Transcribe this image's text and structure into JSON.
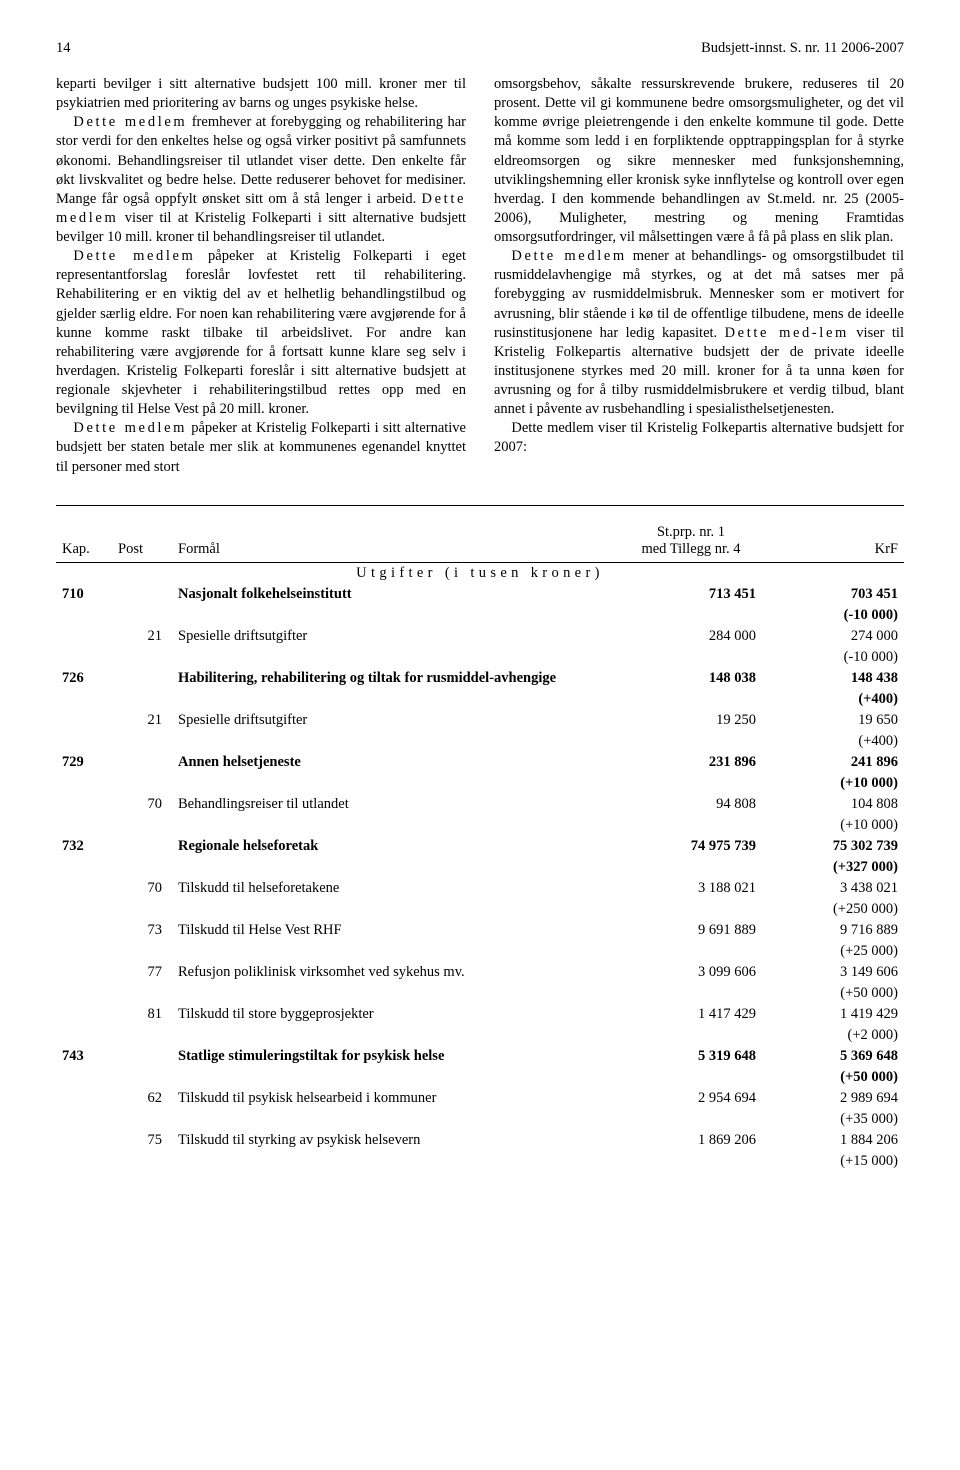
{
  "header": {
    "page_number": "14",
    "doc_ref": "Budsjett-innst. S. nr. 11 2006-2007"
  },
  "body": {
    "col1": {
      "p1": "keparti bevilger i sitt alternative budsjett 100 mill. kroner mer til psykiatrien med prioritering av barns og unges psykiske helse.",
      "p2a": "Dette medlem",
      "p2b": " fremhever at forebygging og rehabilitering har stor verdi for den enkeltes helse og også virker positivt på samfunnets økonomi. Behandlingsreiser til utlandet viser dette. Den enkelte får økt livskvalitet og bedre helse. Dette reduserer behovet for medisiner. Mange får også oppfylt ønsket sitt om å stå lenger i arbeid. ",
      "p2c": "Dette medlem",
      "p2d": " viser til at Kristelig Folkeparti i sitt alternative budsjett bevilger 10 mill. kroner til behandlingsreiser til utlandet.",
      "p3a": "Dette medlem",
      "p3b": " påpeker at Kristelig Folkeparti i eget representantforslag foreslår lovfestet rett til rehabilitering. Rehabilitering er en viktig del av et helhetlig behandlingstilbud og gjelder særlig eldre. For noen kan rehabilitering være avgjørende for å kunne komme raskt tilbake til arbeidslivet. For andre kan rehabilitering være avgjørende for å fortsatt kunne klare seg selv i hverdagen. Kristelig Folkeparti foreslår i sitt alternative budsjett at regionale skjevheter i rehabiliteringstilbud rettes opp med en bevilgning til Helse Vest på 20 mill. kroner.",
      "p4a": "Dette medlem",
      "p4b": " påpeker at Kristelig Folkeparti i sitt alternative budsjett ber staten betale mer slik at kommunenes egenandel knyttet til personer med stort"
    },
    "col2": {
      "p1": "omsorgsbehov, såkalte ressurskrevende brukere, reduseres til 20 prosent. Dette vil gi kommunene bedre omsorgsmuligheter, og det vil komme øvrige pleietrengende i den enkelte kommune til gode. Dette må komme som ledd i en forpliktende opptrappingsplan for å styrke eldreomsorgen og sikre mennesker med funksjonshemning, utviklingshemning eller kronisk syke innflytelse og kontroll over egen hverdag. I den kommende behandlingen av St.meld. nr. 25 (2005-2006), Muligheter, mestring og mening Framtidas omsorgsutfordringer, vil målsettingen være å få på plass en slik plan.",
      "p2a": "Dette medlem",
      "p2b": " mener at behandlings- og omsorgstilbudet til rusmiddelavhengige må styrkes, og at det må satses mer på forebygging av rusmiddelmisbruk. Mennesker som er motivert for avrusning, blir stående i kø til de offentlige tilbudene, mens de ideelle rusinstitusjonene har ledig kapasitet. ",
      "p2c": "Dette med-lem",
      "p2d": " viser til Kristelig Folkepartis alternative budsjett der de private ideelle institusjonene styrkes med 20 mill. kroner for å ta unna køen for avrusning og for å tilby rusmiddelmisbrukere et verdig tilbud, blant annet i påvente av rusbehandling i spesialisthelsetjenesten.",
      "p3": "Dette medlem viser til Kristelig Folkepartis alternative budsjett for 2007:"
    }
  },
  "table": {
    "headers": {
      "kap": "Kap.",
      "post": "Post",
      "formal": "Formål",
      "stprp_l1": "St.prp. nr. 1",
      "stprp_l2": "med Tillegg nr. 4",
      "krf": "KrF"
    },
    "section_title": "Utgifter (i tusen kroner)",
    "rows": [
      {
        "kap": "710",
        "post": "",
        "formal": "Nasjonalt folkehelseinstitutt",
        "v1": "713 451",
        "v2": "703 451",
        "diff": "(-10 000)",
        "bold": true
      },
      {
        "kap": "",
        "post": "21",
        "formal": "Spesielle driftsutgifter",
        "v1": "284 000",
        "v2": "274 000",
        "diff": "(-10 000)",
        "bold": false
      },
      {
        "kap": "726",
        "post": "",
        "formal": "Habilitering, rehabilitering og tiltak for rusmiddel-avhengige",
        "v1": "148 038",
        "v2": "148 438",
        "diff": "(+400)",
        "bold": true
      },
      {
        "kap": "",
        "post": "21",
        "formal": "Spesielle driftsutgifter",
        "v1": "19 250",
        "v2": "19 650",
        "diff": "(+400)",
        "bold": false
      },
      {
        "kap": "729",
        "post": "",
        "formal": "Annen helsetjeneste",
        "v1": "231 896",
        "v2": "241 896",
        "diff": "(+10 000)",
        "bold": true
      },
      {
        "kap": "",
        "post": "70",
        "formal": "Behandlingsreiser til utlandet",
        "v1": "94 808",
        "v2": "104 808",
        "diff": "(+10 000)",
        "bold": false
      },
      {
        "kap": "732",
        "post": "",
        "formal": "Regionale helseforetak",
        "v1": "74 975 739",
        "v2": "75 302 739",
        "diff": "(+327 000)",
        "bold": true
      },
      {
        "kap": "",
        "post": "70",
        "formal": "Tilskudd til helseforetakene",
        "v1": "3 188 021",
        "v2": "3 438 021",
        "diff": "(+250 000)",
        "bold": false
      },
      {
        "kap": "",
        "post": "73",
        "formal": "Tilskudd til Helse Vest RHF",
        "v1": "9 691 889",
        "v2": "9 716 889",
        "diff": "(+25 000)",
        "bold": false
      },
      {
        "kap": "",
        "post": "77",
        "formal": "Refusjon poliklinisk virksomhet ved sykehus mv.",
        "v1": "3 099 606",
        "v2": "3 149 606",
        "diff": "(+50 000)",
        "bold": false
      },
      {
        "kap": "",
        "post": "81",
        "formal": "Tilskudd til store byggeprosjekter",
        "v1": "1 417 429",
        "v2": "1 419 429",
        "diff": "(+2 000)",
        "bold": false
      },
      {
        "kap": "743",
        "post": "",
        "formal": "Statlige stimuleringstiltak for psykisk helse",
        "v1": "5 319 648",
        "v2": "5 369 648",
        "diff": "(+50 000)",
        "bold": true
      },
      {
        "kap": "",
        "post": "62",
        "formal": "Tilskudd til psykisk helsearbeid i kommuner",
        "v1": "2 954 694",
        "v2": "2 989 694",
        "diff": "(+35 000)",
        "bold": false
      },
      {
        "kap": "",
        "post": "75",
        "formal": "Tilskudd til styrking av psykisk helsevern",
        "v1": "1 869 206",
        "v2": "1 884 206",
        "diff": "(+15 000)",
        "bold": false
      }
    ]
  }
}
